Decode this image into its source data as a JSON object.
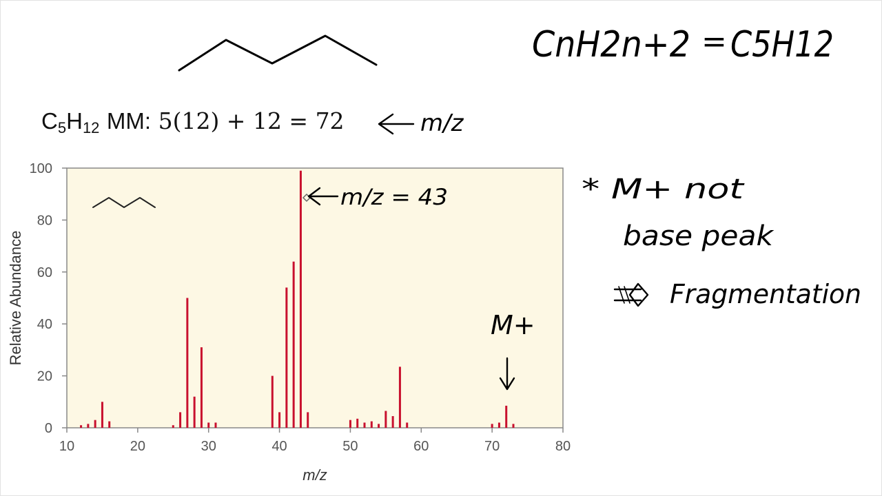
{
  "structure_note": {
    "formula_label": "C",
    "h_label": "H",
    "sub5": "5",
    "sub12": "12",
    "mm_label": "MM:",
    "mm_expr": "5(12) + 12 = 72",
    "mz_note": "m/z"
  },
  "general_formula": {
    "lhs": "CnH2n+2",
    "eq": "=",
    "rhs": "C5H12"
  },
  "annotations": {
    "base_peak_note": "m/z = 43",
    "molecular_ion": "M+",
    "star_note_line1": "* M+ not",
    "star_note_line2": "base peak",
    "fragmentation": "Fragmentation"
  },
  "colors": {
    "bar": "#c8102e",
    "plot_bg": "#fdf8e4",
    "axis": "#888888"
  },
  "chart_data": {
    "type": "bar",
    "xlabel": "m/z",
    "ylabel": "Relative Abundance",
    "xlim": [
      10,
      80
    ],
    "ylim": [
      0,
      100
    ],
    "xticks": [
      10,
      20,
      30,
      40,
      50,
      60,
      70,
      80
    ],
    "yticks": [
      0,
      20,
      40,
      60,
      80,
      100
    ],
    "x": [
      12,
      13,
      14,
      15,
      16,
      25,
      26,
      27,
      28,
      29,
      30,
      31,
      39,
      40,
      41,
      42,
      43,
      44,
      50,
      51,
      52,
      53,
      54,
      55,
      56,
      57,
      58,
      70,
      71,
      72,
      73
    ],
    "values": [
      1,
      1.5,
      3,
      10,
      2.5,
      1,
      6,
      50,
      12,
      31,
      2,
      2,
      20,
      6,
      54,
      64,
      99,
      6,
      3,
      3.5,
      2,
      2.5,
      1.5,
      6.5,
      4.5,
      23.5,
      2,
      1.5,
      2,
      8.5,
      1.5
    ]
  }
}
